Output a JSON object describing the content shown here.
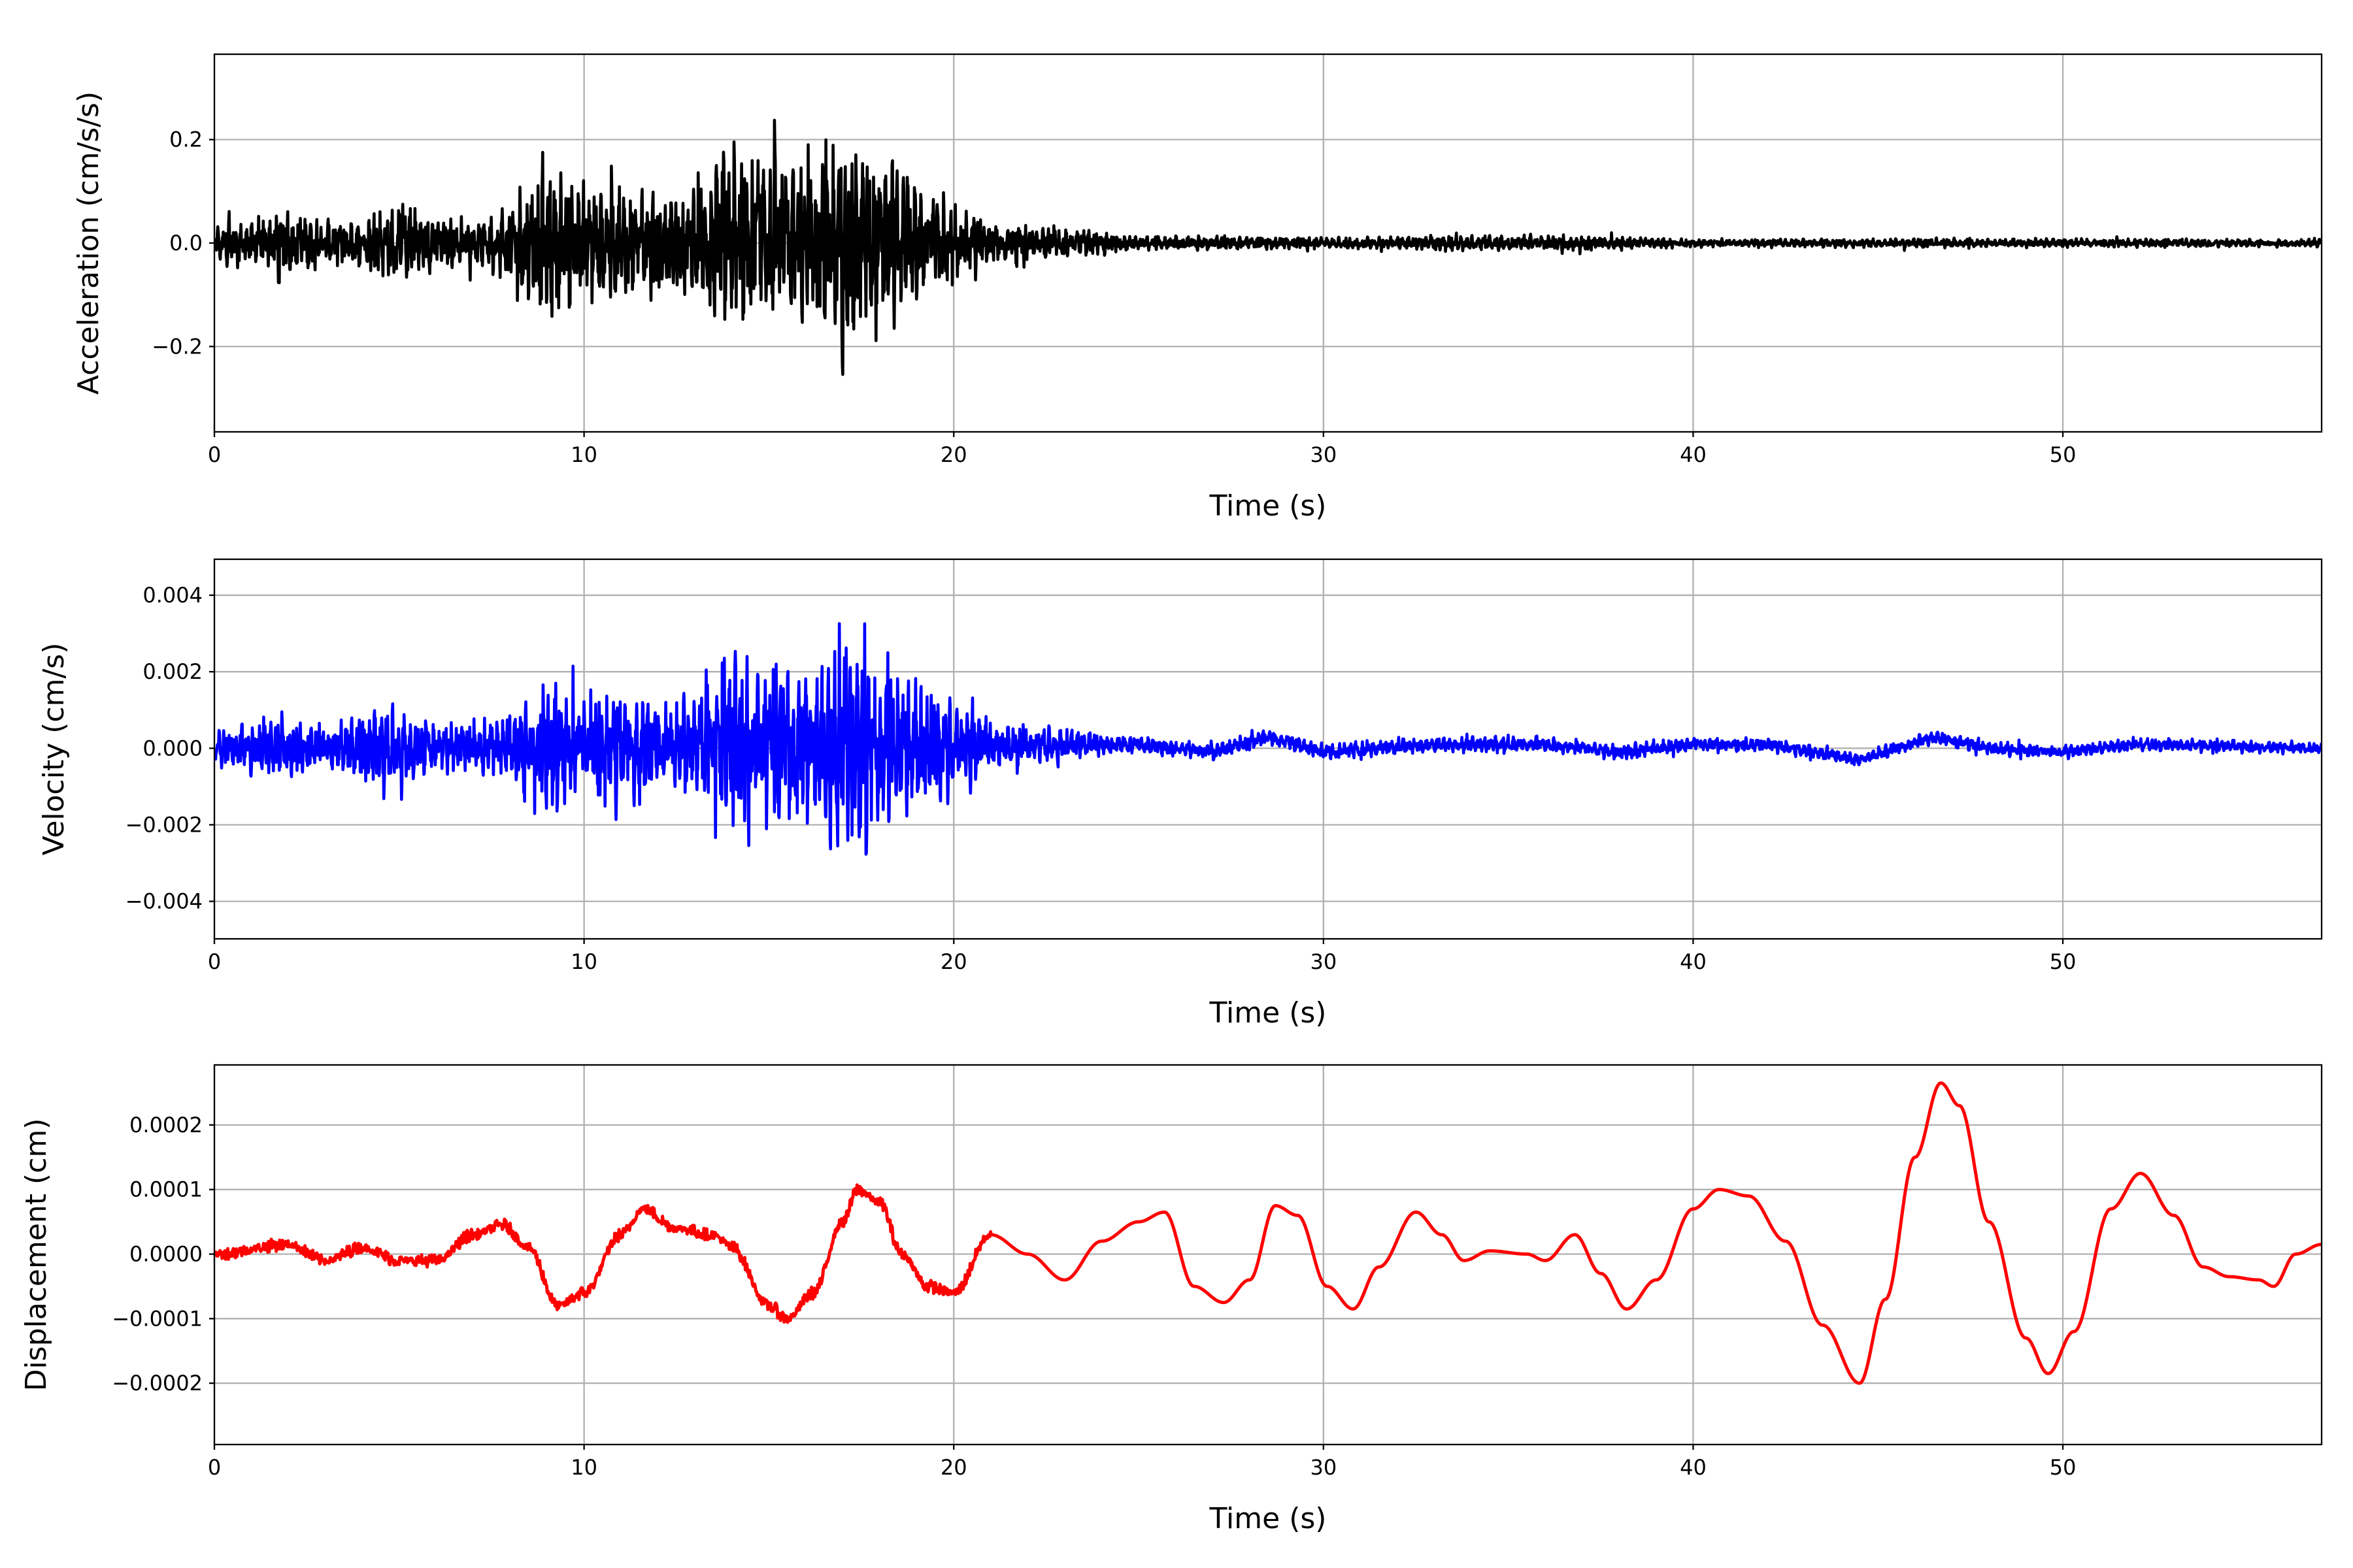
{
  "chart_data": [
    {
      "type": "line",
      "title": "",
      "xlabel": "Time (s)",
      "ylabel": "Acceleration (cm/s/s)",
      "xlim": [
        0,
        57.0
      ],
      "ylim": [
        -0.365,
        0.365
      ],
      "grid": true,
      "color": "#000000",
      "xticks": [
        0,
        10,
        20,
        30,
        40,
        50
      ],
      "xtick_labels": [
        "0",
        "10",
        "20",
        "30",
        "40",
        "50"
      ],
      "yticks": [
        -0.2,
        0.0,
        0.2
      ],
      "ytick_labels": [
        "−0.2",
        "0.0",
        "0.2"
      ],
      "series": [
        {
          "name": "acceleration",
          "kind": "oscillatory",
          "envelope_t": [
            0,
            1,
            2,
            3,
            4,
            5,
            6,
            7,
            8,
            9,
            10,
            11,
            12,
            13,
            14,
            15,
            16,
            17,
            18,
            19,
            20,
            21,
            22,
            23,
            25,
            30,
            33,
            37,
            40,
            45,
            57
          ],
          "envelope_amp": [
            0.05,
            0.07,
            0.1,
            0.06,
            0.06,
            0.13,
            0.07,
            0.06,
            0.1,
            0.23,
            0.16,
            0.17,
            0.13,
            0.15,
            0.28,
            0.22,
            0.22,
            0.32,
            0.25,
            0.17,
            0.12,
            0.06,
            0.05,
            0.04,
            0.02,
            0.015,
            0.02,
            0.02,
            0.01,
            0.012,
            0.01
          ],
          "trend_t": [
            0,
            57
          ],
          "trend_v": [
            0,
            0
          ]
        }
      ]
    },
    {
      "type": "line",
      "title": "",
      "xlabel": "Time (s)",
      "ylabel": "Velocity (cm/s)",
      "xlim": [
        0,
        57.0
      ],
      "ylim": [
        -0.00498,
        0.00494
      ],
      "grid": true,
      "color": "#0000ff",
      "xticks": [
        0,
        10,
        20,
        30,
        40,
        50
      ],
      "xtick_labels": [
        "0",
        "10",
        "20",
        "30",
        "40",
        "50"
      ],
      "yticks": [
        -0.004,
        -0.002,
        0.0,
        0.002,
        0.004
      ],
      "ytick_labels": [
        "−0.004",
        "−0.002",
        "0.000",
        "0.002",
        "0.004"
      ],
      "series": [
        {
          "name": "velocity",
          "kind": "oscillatory",
          "envelope_t": [
            0,
            2,
            3,
            5,
            6,
            8,
            9,
            10,
            11,
            12,
            13,
            14,
            15,
            16,
            17,
            18,
            19,
            20,
            21,
            23,
            25,
            57
          ],
          "envelope_amp": [
            0.0006,
            0.0012,
            0.0008,
            0.0018,
            0.0008,
            0.0012,
            0.0026,
            0.0018,
            0.0022,
            0.0016,
            0.002,
            0.0036,
            0.0028,
            0.003,
            0.0042,
            0.0032,
            0.0024,
            0.0018,
            0.0008,
            0.0006,
            0.0003,
            0.0002
          ],
          "trend_t": [
            0,
            25,
            27,
            28.5,
            30,
            33,
            36,
            38,
            40,
            42,
            44.5,
            46.5,
            48,
            50,
            52,
            57
          ],
          "trend_v": [
            0,
            0.0001,
            -0.0001,
            0.0003,
            -0.0001,
            0.0001,
            0.0001,
            -0.0001,
            0.0001,
            0.0001,
            -0.0003,
            0.0003,
            0,
            -0.0001,
            0.0001,
            0
          ]
        }
      ]
    },
    {
      "type": "line",
      "title": "",
      "xlabel": "Time (s)",
      "ylabel": "Displacement (cm)",
      "xlim": [
        0,
        57.0
      ],
      "ylim": [
        -0.000295,
        0.000293
      ],
      "grid": true,
      "color": "#ff0000",
      "xticks": [
        0,
        10,
        20,
        30,
        40,
        50
      ],
      "xtick_labels": [
        "0",
        "10",
        "20",
        "30",
        "40",
        "50"
      ],
      "yticks": [
        -0.0002,
        -0.0001,
        0.0,
        0.0001,
        0.0002
      ],
      "ytick_labels": [
        "−0.0002",
        "−0.0001",
        "0.0000",
        "0.0001",
        "0.0002"
      ],
      "series": [
        {
          "name": "displacement",
          "kind": "smooth",
          "t": [
            0,
            2,
            3,
            4,
            5,
            6,
            7,
            7.8,
            8.5,
            9.3,
            10,
            11,
            11.6,
            12.5,
            13.5,
            14,
            15,
            15.5,
            16.2,
            17,
            17.4,
            18,
            18.6,
            19.3,
            20,
            21,
            22,
            23,
            24,
            25,
            25.7,
            26.5,
            27.3,
            28,
            28.7,
            29.3,
            30.1,
            30.8,
            31.5,
            32.5,
            33.2,
            33.8,
            34.5,
            35.5,
            36,
            36.8,
            37.5,
            38.2,
            39,
            40,
            40.7,
            41.5,
            42.5,
            43.5,
            44.5,
            45.2,
            46,
            46.7,
            47.2,
            48,
            49,
            49.6,
            50.3,
            51.3,
            52.1,
            53,
            53.8,
            54.5,
            55.3,
            55.7,
            56.3,
            57
          ],
          "v": [
            0,
            1.5e-05,
            -1e-05,
            1e-05,
            -1e-05,
            -1e-05,
            3e-05,
            4.5e-05,
            1e-05,
            -8e-05,
            -6e-05,
            3e-05,
            7e-05,
            4e-05,
            3e-05,
            1e-05,
            -8e-05,
            -0.0001,
            -6e-05,
            5e-05,
            0.0001,
            8e-05,
            0,
            -5e-05,
            -6e-05,
            3e-05,
            0,
            -4e-05,
            2e-05,
            5e-05,
            6.5e-05,
            -5e-05,
            -7.5e-05,
            -4e-05,
            7.5e-05,
            6e-05,
            -5e-05,
            -8.5e-05,
            -2e-05,
            6.5e-05,
            3e-05,
            -1e-05,
            5e-06,
            0,
            -1e-05,
            3e-05,
            -3e-05,
            -8.5e-05,
            -4e-05,
            7e-05,
            0.0001,
            9e-05,
            2e-05,
            -0.00011,
            -0.0002,
            -7e-05,
            0.00015,
            0.000265,
            0.00023,
            5e-05,
            -0.00013,
            -0.000185,
            -0.00012,
            7e-05,
            0.000125,
            6e-05,
            -2e-05,
            -3.5e-05,
            -4e-05,
            -5e-05,
            0,
            1.5e-05
          ],
          "noise_until": 21,
          "noise_amp": 1e-05
        }
      ]
    }
  ]
}
